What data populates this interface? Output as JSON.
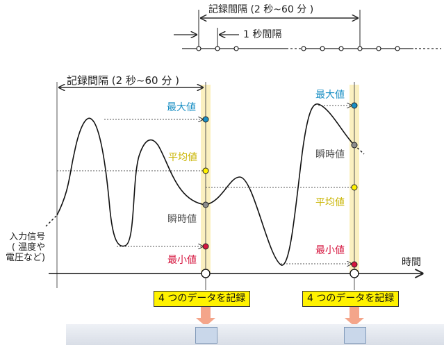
{
  "top_scale": {
    "record_interval": "記録間隔 (2 秒~60 分 )",
    "one_sec_interval": "1 秒間隔"
  },
  "main_record_interval": "記録間隔 (2 秒~60 分 )",
  "values": {
    "max": "最大値",
    "avg": "平均値",
    "inst": "瞬時値",
    "min": "最小値"
  },
  "input_signal": "入力信号\n( 温度や\n電圧など)",
  "time_label": "時間",
  "record_badge": "4 つのデータを記録",
  "colors": {
    "max": "#1a8fc4",
    "avg": "#fff200",
    "inst": "#8c8c8c",
    "min": "#d6163f",
    "band": "#fbf0c0",
    "arrow": "#f4a58a"
  }
}
